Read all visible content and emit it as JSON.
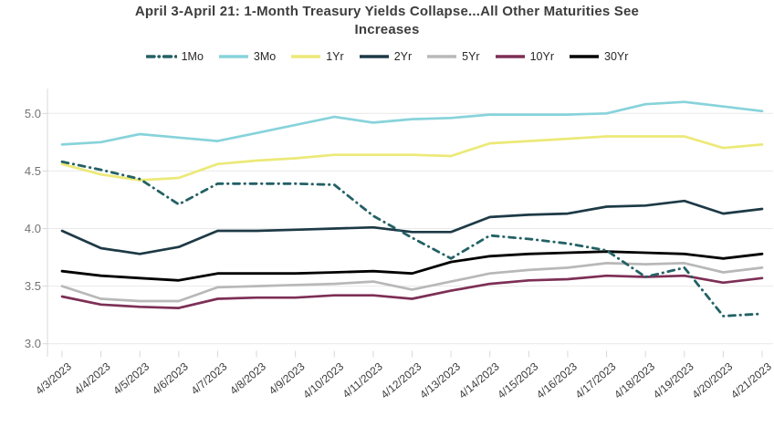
{
  "title": {
    "line1": "April 3-April 21: 1-Month Treasury Yields Collapse...All Other Maturities See",
    "line2": "Increases"
  },
  "chart_data": {
    "type": "line",
    "title": "April 3-April 21: 1-Month Treasury Yields Collapse...All Other Maturities See Increases",
    "legend_position": "top",
    "grid": "horizontal",
    "ylim": [
      3.0,
      5.0
    ],
    "yticks": [
      3.0,
      3.5,
      4.0,
      4.5,
      5.0
    ],
    "ytick_labels": [
      "3.0",
      "3.5",
      "4.0",
      "4.5",
      "5.0"
    ],
    "x": [
      "4/3/2023",
      "4/4/2023",
      "4/5/2023",
      "4/6/2023",
      "4/7/2023",
      "4/8/2023",
      "4/9/2023",
      "4/10/2023",
      "4/11/2023",
      "4/12/2023",
      "4/13/2023",
      "4/14/2023",
      "4/15/2023",
      "4/16/2023",
      "4/17/2023",
      "4/18/2023",
      "4/19/2023",
      "4/20/2023",
      "4/21/2023"
    ],
    "series": [
      {
        "name": "1Mo",
        "color": "#236165",
        "style": "dashdot",
        "width": 2.8,
        "values": [
          4.58,
          4.51,
          4.43,
          4.21,
          4.39,
          4.39,
          4.39,
          4.38,
          4.11,
          3.92,
          3.74,
          3.94,
          3.91,
          3.87,
          3.81,
          3.58,
          3.66,
          3.24,
          3.26
        ]
      },
      {
        "name": "3Mo",
        "color": "#87d3db",
        "style": "solid",
        "width": 2.7,
        "values": [
          4.73,
          4.75,
          4.82,
          4.79,
          4.76,
          4.83,
          4.9,
          4.97,
          4.92,
          4.95,
          4.96,
          4.99,
          4.99,
          4.99,
          5.0,
          5.08,
          5.1,
          5.06,
          5.02
        ]
      },
      {
        "name": "1Yr",
        "color": "#ece978",
        "style": "solid",
        "width": 2.7,
        "values": [
          4.56,
          4.47,
          4.42,
          4.44,
          4.56,
          4.59,
          4.61,
          4.64,
          4.64,
          4.64,
          4.63,
          4.74,
          4.76,
          4.78,
          4.8,
          4.8,
          4.8,
          4.7,
          4.73
        ]
      },
      {
        "name": "2Yr",
        "color": "#1d3a46",
        "style": "solid",
        "width": 2.7,
        "values": [
          3.98,
          3.83,
          3.78,
          3.84,
          3.98,
          3.98,
          3.99,
          4.0,
          4.01,
          3.97,
          3.97,
          4.1,
          4.12,
          4.13,
          4.19,
          4.2,
          4.24,
          4.13,
          4.17
        ]
      },
      {
        "name": "5Yr",
        "color": "#b8b8b8",
        "style": "solid",
        "width": 2.7,
        "values": [
          3.5,
          3.39,
          3.37,
          3.37,
          3.49,
          3.5,
          3.51,
          3.52,
          3.54,
          3.47,
          3.54,
          3.61,
          3.64,
          3.66,
          3.7,
          3.69,
          3.7,
          3.62,
          3.66
        ]
      },
      {
        "name": "10Yr",
        "color": "#7d2f56",
        "style": "solid",
        "width": 2.7,
        "values": [
          3.41,
          3.34,
          3.32,
          3.31,
          3.39,
          3.4,
          3.4,
          3.42,
          3.42,
          3.39,
          3.46,
          3.52,
          3.55,
          3.56,
          3.59,
          3.58,
          3.59,
          3.53,
          3.57
        ]
      },
      {
        "name": "30Yr",
        "color": "#000000",
        "style": "solid",
        "width": 2.8,
        "values": [
          3.63,
          3.59,
          3.57,
          3.55,
          3.61,
          3.61,
          3.61,
          3.62,
          3.63,
          3.61,
          3.71,
          3.76,
          3.78,
          3.79,
          3.8,
          3.79,
          3.78,
          3.74,
          3.78
        ]
      }
    ]
  },
  "axis_colors": {
    "gridline": "#e9e9e9",
    "axis_line": "#d8d8d8",
    "y_label": "#737373",
    "x_label": "#3c3c3c"
  }
}
